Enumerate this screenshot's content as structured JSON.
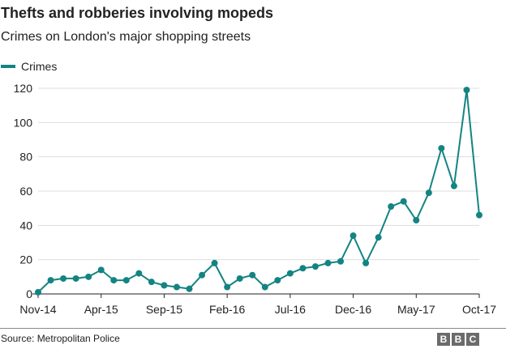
{
  "header": {
    "title": "Thefts and robberies involving mopeds",
    "subtitle": "Crimes on London's major shopping streets"
  },
  "footer": {
    "source": "Source: Metropolitan Police",
    "logo_letters": [
      "B",
      "B",
      "C"
    ]
  },
  "colors": {
    "series": "#138482",
    "grid": "#dddddd",
    "axis": "#222222"
  },
  "chart_data": {
    "type": "line",
    "legend": [
      "Crimes"
    ],
    "legend_position": "top-left",
    "grid": true,
    "ylim": [
      0,
      120
    ],
    "yticks": [
      0,
      20,
      40,
      60,
      80,
      100,
      120
    ],
    "xtick_labels": [
      "Nov-14",
      "Apr-15",
      "Sep-15",
      "Feb-16",
      "Jul-16",
      "Dec-16",
      "May-17",
      "Oct-17"
    ],
    "x": [
      "Nov-14",
      "Dec-14",
      "Jan-15",
      "Feb-15",
      "Mar-15",
      "Apr-15",
      "May-15",
      "Jun-15",
      "Jul-15",
      "Aug-15",
      "Sep-15",
      "Oct-15",
      "Nov-15",
      "Dec-15",
      "Jan-16",
      "Feb-16",
      "Mar-16",
      "Apr-16",
      "May-16",
      "Jun-16",
      "Jul-16",
      "Aug-16",
      "Sep-16",
      "Oct-16",
      "Nov-16",
      "Dec-16",
      "Jan-17",
      "Feb-17",
      "Mar-17",
      "Apr-17",
      "May-17",
      "Jun-17",
      "Jul-17",
      "Aug-17",
      "Sep-17",
      "Oct-17"
    ],
    "series": [
      {
        "name": "Crimes",
        "values": [
          1,
          8,
          9,
          9,
          10,
          14,
          8,
          8,
          12,
          7,
          5,
          4,
          3,
          11,
          18,
          4,
          9,
          11,
          4,
          8,
          12,
          15,
          16,
          18,
          19,
          34,
          18,
          33,
          51,
          54,
          43,
          59,
          85,
          63,
          119,
          46
        ]
      }
    ]
  }
}
